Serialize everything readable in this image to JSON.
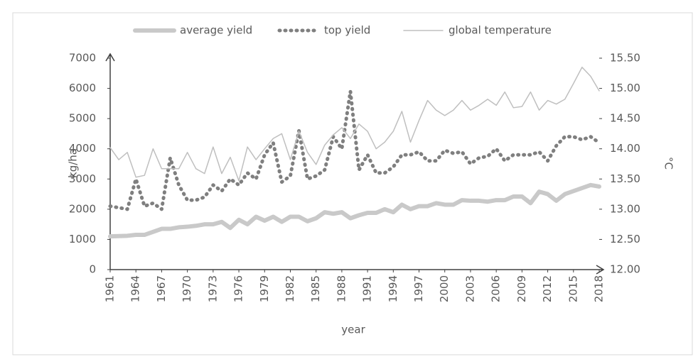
{
  "chart_data": {
    "type": "line",
    "x": [
      1961,
      1962,
      1963,
      1964,
      1965,
      1966,
      1967,
      1968,
      1969,
      1970,
      1971,
      1972,
      1973,
      1974,
      1975,
      1976,
      1977,
      1978,
      1979,
      1980,
      1981,
      1982,
      1983,
      1984,
      1985,
      1986,
      1987,
      1988,
      1989,
      1990,
      1991,
      1992,
      1993,
      1994,
      1995,
      1996,
      1997,
      1998,
      1999,
      2000,
      2001,
      2002,
      2003,
      2004,
      2005,
      2006,
      2007,
      2008,
      2009,
      2010,
      2011,
      2012,
      2013,
      2014,
      2015,
      2016,
      2017,
      2018
    ],
    "xlim": [
      1961,
      2018
    ],
    "xticks": [
      1961,
      1964,
      1967,
      1970,
      1973,
      1976,
      1979,
      1982,
      1985,
      1988,
      1991,
      1994,
      1997,
      2000,
      2003,
      2006,
      2009,
      2012,
      2015,
      2018
    ],
    "xlabel": "year",
    "ylabel": "kg/ha",
    "y2label": "°C",
    "ylim": [
      0,
      7000
    ],
    "yticks": [
      0,
      1000,
      2000,
      3000,
      4000,
      5000,
      6000,
      7000
    ],
    "y2lim": [
      12,
      15.5
    ],
    "y2ticks": [
      {
        "value": 12,
        "label": "12.00"
      },
      {
        "value": 12.5,
        "label": "12.50"
      },
      {
        "value": 13,
        "label": "13.00"
      },
      {
        "value": 13.5,
        "label": "13.50"
      },
      {
        "value": 14,
        "label": "14.00"
      },
      {
        "value": 14.5,
        "label": "14.50"
      },
      {
        "value": 15,
        "label": "15.00"
      },
      {
        "value": 15.5,
        "label": "15.50"
      }
    ],
    "legend": "top",
    "series": [
      {
        "name": "average yield",
        "color": "#c9c9c9",
        "style": "thick",
        "values": [
          1100,
          1110,
          1120,
          1150,
          1150,
          1250,
          1350,
          1350,
          1400,
          1420,
          1450,
          1500,
          1500,
          1580,
          1380,
          1650,
          1500,
          1750,
          1620,
          1750,
          1580,
          1750,
          1750,
          1600,
          1700,
          1900,
          1850,
          1900,
          1700,
          1800,
          1880,
          1880,
          2000,
          1900,
          2150,
          2000,
          2100,
          2100,
          2200,
          2150,
          2150,
          2300,
          2280,
          2280,
          2250,
          2300,
          2300,
          2420,
          2420,
          2200,
          2580,
          2500,
          2280,
          2500,
          2600,
          2700,
          2800,
          2750
        ]
      },
      {
        "name": "top yield",
        "color": "#7f7f7f",
        "style": "dotted",
        "values": [
          2100,
          2050,
          2000,
          3000,
          2100,
          2200,
          2000,
          3700,
          2800,
          2300,
          2300,
          2400,
          2800,
          2600,
          3000,
          2800,
          3200,
          3000,
          3800,
          4200,
          2900,
          3100,
          4600,
          3000,
          3100,
          3300,
          4400,
          4000,
          5900,
          3300,
          3800,
          3200,
          3200,
          3400,
          3800,
          3800,
          3900,
          3600,
          3600,
          3950,
          3850,
          3900,
          3500,
          3700,
          3750,
          4000,
          3600,
          3800,
          3800,
          3800,
          3900,
          3600,
          4100,
          4400,
          4400,
          4300,
          4400,
          4200
        ]
      },
      {
        "name": "global temperature",
        "color": "#bfbfbf",
        "style": "thin",
        "axis": "y2",
        "values": [
          14.02,
          13.82,
          13.94,
          13.53,
          13.56,
          14.0,
          13.67,
          13.67,
          13.67,
          13.94,
          13.67,
          13.59,
          14.03,
          13.59,
          13.86,
          13.47,
          14.03,
          13.82,
          14.0,
          14.17,
          14.25,
          13.82,
          14.29,
          13.94,
          13.74,
          14.06,
          14.23,
          14.35,
          14.17,
          14.41,
          14.29,
          14.0,
          14.11,
          14.29,
          14.62,
          14.11,
          14.47,
          14.8,
          14.64,
          14.55,
          14.64,
          14.8,
          14.64,
          14.72,
          14.82,
          14.72,
          14.94,
          14.68,
          14.7,
          14.94,
          14.64,
          14.8,
          14.74,
          14.82,
          15.08,
          15.35,
          15.2,
          14.96
        ]
      }
    ]
  }
}
